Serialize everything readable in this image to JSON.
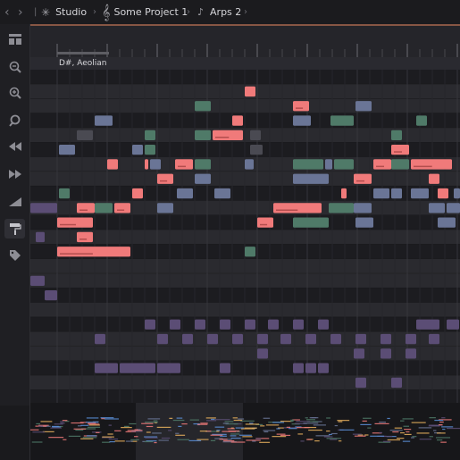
{
  "topbar": {
    "back_icon": "chevron-left-icon",
    "forward_icon": "chevron-right-icon",
    "crumbs": [
      {
        "label": "Studio",
        "icon": "loading-spinner-icon"
      },
      {
        "label": "Some Project 1",
        "icon": "treble-clef-icon"
      },
      {
        "label": "Arps 2",
        "icon": "music-note-icon"
      }
    ]
  },
  "tools": [
    {
      "name": "layout-icon"
    },
    {
      "name": "zoom-out-icon"
    },
    {
      "name": "zoom-in-icon"
    },
    {
      "name": "zoom-fit-icon"
    },
    {
      "name": "rewind-icon"
    },
    {
      "name": "fast-forward-icon"
    },
    {
      "name": "velocity-icon"
    },
    {
      "name": "paint-roller-icon",
      "active": true
    },
    {
      "name": "tag-icon"
    }
  ],
  "scale": {
    "label": "D#, Aeolian"
  },
  "colors": {
    "red": "#f07a7a",
    "green": "#4f7a68",
    "blue": "#6a7596",
    "purple": "#5b4d75",
    "accent_line": "#e9875e"
  },
  "notes": [
    {
      "row": 1,
      "start": 240,
      "len": 12,
      "color": "red"
    },
    {
      "row": 2,
      "start": 184,
      "len": 18,
      "color": "green"
    },
    {
      "row": 2,
      "start": 294,
      "len": 18,
      "color": "red"
    },
    {
      "row": 2,
      "start": 364,
      "len": 18,
      "color": "blue"
    },
    {
      "row": 3,
      "start": 72,
      "len": 20,
      "color": "blue"
    },
    {
      "row": 3,
      "start": 226,
      "len": 12,
      "color": "red"
    },
    {
      "row": 3,
      "start": 294,
      "len": 20,
      "color": "blue"
    },
    {
      "row": 3,
      "start": 336,
      "len": 26,
      "color": "green"
    },
    {
      "row": 3,
      "start": 432,
      "len": 12,
      "color": "green"
    },
    {
      "row": 4,
      "start": 52,
      "len": 18,
      "color": "grey"
    },
    {
      "row": 4,
      "start": 128,
      "len": 12,
      "color": "green"
    },
    {
      "row": 4,
      "start": 184,
      "len": 18,
      "color": "green"
    },
    {
      "row": 4,
      "start": 204,
      "len": 34,
      "color": "red"
    },
    {
      "row": 4,
      "start": 246,
      "len": 12,
      "color": "grey"
    },
    {
      "row": 4,
      "start": 404,
      "len": 12,
      "color": "green"
    },
    {
      "row": 5,
      "start": 32,
      "len": 18,
      "color": "blue"
    },
    {
      "row": 5,
      "start": 114,
      "len": 12,
      "color": "blue"
    },
    {
      "row": 5,
      "start": 128,
      "len": 12,
      "color": "green"
    },
    {
      "row": 5,
      "start": 246,
      "len": 14,
      "color": "grey"
    },
    {
      "row": 5,
      "start": 404,
      "len": 20,
      "color": "red"
    },
    {
      "row": 6,
      "start": 86,
      "len": 12,
      "color": "red"
    },
    {
      "row": 6,
      "start": 128,
      "len": 4,
      "color": "red"
    },
    {
      "row": 6,
      "start": 134,
      "len": 12,
      "color": "blue"
    },
    {
      "row": 6,
      "start": 162,
      "len": 20,
      "color": "red"
    },
    {
      "row": 6,
      "start": 184,
      "len": 18,
      "color": "green"
    },
    {
      "row": 6,
      "start": 240,
      "len": 10,
      "color": "blue"
    },
    {
      "row": 6,
      "start": 294,
      "len": 34,
      "color": "green"
    },
    {
      "row": 6,
      "start": 330,
      "len": 8,
      "color": "blue"
    },
    {
      "row": 6,
      "start": 340,
      "len": 22,
      "color": "green"
    },
    {
      "row": 6,
      "start": 384,
      "len": 20,
      "color": "red"
    },
    {
      "row": 6,
      "start": 404,
      "len": 20,
      "color": "green"
    },
    {
      "row": 6,
      "start": 426,
      "len": 46,
      "color": "red"
    },
    {
      "row": 7,
      "start": 142,
      "len": 18,
      "color": "red"
    },
    {
      "row": 7,
      "start": 184,
      "len": 18,
      "color": "blue"
    },
    {
      "row": 7,
      "start": 294,
      "len": 40,
      "color": "blue"
    },
    {
      "row": 7,
      "start": 362,
      "len": 20,
      "color": "red"
    },
    {
      "row": 7,
      "start": 446,
      "len": 12,
      "color": "red"
    },
    {
      "row": 8,
      "start": 32,
      "len": 12,
      "color": "green"
    },
    {
      "row": 8,
      "start": 114,
      "len": 12,
      "color": "red"
    },
    {
      "row": 8,
      "start": 164,
      "len": 18,
      "color": "blue"
    },
    {
      "row": 8,
      "start": 206,
      "len": 18,
      "color": "blue"
    },
    {
      "row": 8,
      "start": 348,
      "len": 6,
      "color": "red"
    },
    {
      "row": 8,
      "start": 384,
      "len": 18,
      "color": "blue"
    },
    {
      "row": 8,
      "start": 404,
      "len": 12,
      "color": "blue"
    },
    {
      "row": 8,
      "start": 426,
      "len": 20,
      "color": "blue"
    },
    {
      "row": 8,
      "start": 456,
      "len": 12,
      "color": "red"
    },
    {
      "row": 8,
      "start": 474,
      "len": 7,
      "color": "blue"
    },
    {
      "row": 9,
      "start": 0,
      "len": 30,
      "color": "purple"
    },
    {
      "row": 9,
      "start": 52,
      "len": 20,
      "color": "red"
    },
    {
      "row": 9,
      "start": 72,
      "len": 20,
      "color": "green"
    },
    {
      "row": 9,
      "start": 94,
      "len": 18,
      "color": "red"
    },
    {
      "row": 9,
      "start": 142,
      "len": 18,
      "color": "blue"
    },
    {
      "row": 9,
      "start": 272,
      "len": 54,
      "color": "red"
    },
    {
      "row": 9,
      "start": 334,
      "len": 28,
      "color": "green"
    },
    {
      "row": 9,
      "start": 362,
      "len": 20,
      "color": "blue"
    },
    {
      "row": 9,
      "start": 446,
      "len": 18,
      "color": "blue"
    },
    {
      "row": 9,
      "start": 466,
      "len": 15,
      "color": "blue"
    },
    {
      "row": 10,
      "start": 30,
      "len": 40,
      "color": "red"
    },
    {
      "row": 10,
      "start": 254,
      "len": 18,
      "color": "red"
    },
    {
      "row": 10,
      "start": 294,
      "len": 40,
      "color": "green"
    },
    {
      "row": 10,
      "start": 364,
      "len": 20,
      "color": "blue"
    },
    {
      "row": 10,
      "start": 456,
      "len": 20,
      "color": "blue"
    },
    {
      "row": 11,
      "start": 6,
      "len": 10,
      "color": "purple"
    },
    {
      "row": 11,
      "start": 52,
      "len": 18,
      "color": "red"
    },
    {
      "row": 12,
      "start": 30,
      "len": 82,
      "color": "red"
    },
    {
      "row": 12,
      "start": 240,
      "len": 12,
      "color": "green"
    },
    {
      "row": 14,
      "start": 0,
      "len": 16,
      "color": "purple"
    },
    {
      "row": 15,
      "start": 16,
      "len": 14,
      "color": "purple"
    },
    {
      "row": 17,
      "start": 128,
      "len": 12,
      "color": "purple"
    },
    {
      "row": 17,
      "start": 156,
      "len": 12,
      "color": "purple"
    },
    {
      "row": 17,
      "start": 184,
      "len": 12,
      "color": "purple"
    },
    {
      "row": 17,
      "start": 212,
      "len": 12,
      "color": "purple"
    },
    {
      "row": 17,
      "start": 240,
      "len": 12,
      "color": "purple"
    },
    {
      "row": 17,
      "start": 266,
      "len": 12,
      "color": "purple"
    },
    {
      "row": 17,
      "start": 294,
      "len": 12,
      "color": "purple"
    },
    {
      "row": 17,
      "start": 322,
      "len": 12,
      "color": "purple"
    },
    {
      "row": 17,
      "start": 432,
      "len": 26,
      "color": "purple"
    },
    {
      "row": 17,
      "start": 466,
      "len": 14,
      "color": "purple"
    },
    {
      "row": 18,
      "start": 72,
      "len": 12,
      "color": "purple"
    },
    {
      "row": 18,
      "start": 142,
      "len": 12,
      "color": "purple"
    },
    {
      "row": 18,
      "start": 170,
      "len": 12,
      "color": "purple"
    },
    {
      "row": 18,
      "start": 198,
      "len": 12,
      "color": "purple"
    },
    {
      "row": 18,
      "start": 226,
      "len": 12,
      "color": "purple"
    },
    {
      "row": 18,
      "start": 254,
      "len": 12,
      "color": "purple"
    },
    {
      "row": 18,
      "start": 280,
      "len": 12,
      "color": "purple"
    },
    {
      "row": 18,
      "start": 308,
      "len": 12,
      "color": "purple"
    },
    {
      "row": 18,
      "start": 336,
      "len": 12,
      "color": "purple"
    },
    {
      "row": 18,
      "start": 364,
      "len": 12,
      "color": "purple"
    },
    {
      "row": 18,
      "start": 392,
      "len": 12,
      "color": "purple"
    },
    {
      "row": 18,
      "start": 420,
      "len": 12,
      "color": "purple"
    },
    {
      "row": 18,
      "start": 446,
      "len": 12,
      "color": "purple"
    },
    {
      "row": 19,
      "start": 254,
      "len": 12,
      "color": "purple"
    },
    {
      "row": 19,
      "start": 362,
      "len": 12,
      "color": "purple"
    },
    {
      "row": 19,
      "start": 392,
      "len": 12,
      "color": "purple"
    },
    {
      "row": 19,
      "start": 420,
      "len": 12,
      "color": "purple"
    },
    {
      "row": 20,
      "start": 72,
      "len": 26,
      "color": "purple"
    },
    {
      "row": 20,
      "start": 100,
      "len": 40,
      "color": "purple"
    },
    {
      "row": 20,
      "start": 142,
      "len": 26,
      "color": "purple"
    },
    {
      "row": 20,
      "start": 212,
      "len": 12,
      "color": "purple"
    },
    {
      "row": 20,
      "start": 294,
      "len": 12,
      "color": "purple"
    },
    {
      "row": 20,
      "start": 308,
      "len": 12,
      "color": "purple"
    },
    {
      "row": 20,
      "start": 322,
      "len": 12,
      "color": "purple"
    },
    {
      "row": 21,
      "start": 364,
      "len": 12,
      "color": "purple"
    },
    {
      "row": 21,
      "start": 404,
      "len": 12,
      "color": "purple"
    },
    {
      "row": 23,
      "start": 44,
      "len": 14,
      "color": "purple"
    },
    {
      "row": 23,
      "start": 114,
      "len": 12,
      "color": "purple"
    }
  ]
}
